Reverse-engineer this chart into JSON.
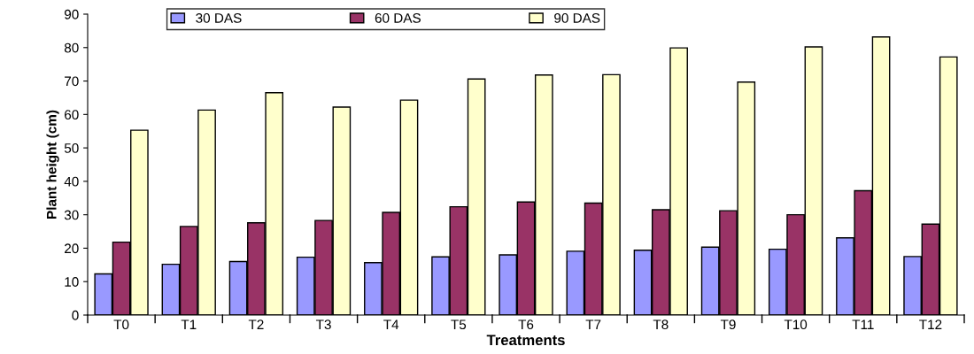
{
  "chart_data": {
    "type": "bar",
    "xlabel": "Treatments",
    "ylabel": "Plant height (cm)",
    "categories": [
      "T0",
      "T1",
      "T2",
      "T3",
      "T4",
      "T5",
      "T6",
      "T7",
      "T8",
      "T9",
      "T10",
      "T11",
      "T12"
    ],
    "series": [
      {
        "name": "30 DAS",
        "color": "#9999ff",
        "values": [
          12.3,
          15.2,
          16.0,
          17.3,
          15.7,
          17.4,
          18.0,
          19.1,
          19.4,
          20.3,
          19.7,
          23.1,
          17.5
        ]
      },
      {
        "name": "60 DAS",
        "color": "#993366",
        "values": [
          21.8,
          26.5,
          27.6,
          28.3,
          30.7,
          32.4,
          33.8,
          33.5,
          31.5,
          31.2,
          30.0,
          37.2,
          27.2
        ]
      },
      {
        "name": "90 DAS",
        "color": "#ffffcc",
        "values": [
          55.3,
          61.3,
          66.5,
          62.2,
          64.3,
          70.6,
          71.8,
          71.9,
          79.9,
          69.7,
          80.2,
          83.2,
          77.2
        ]
      }
    ],
    "ylim": [
      0,
      90
    ],
    "yticks": [
      0,
      10,
      20,
      30,
      40,
      50,
      60,
      70,
      80,
      90
    ],
    "grid": false,
    "legend": "top"
  }
}
